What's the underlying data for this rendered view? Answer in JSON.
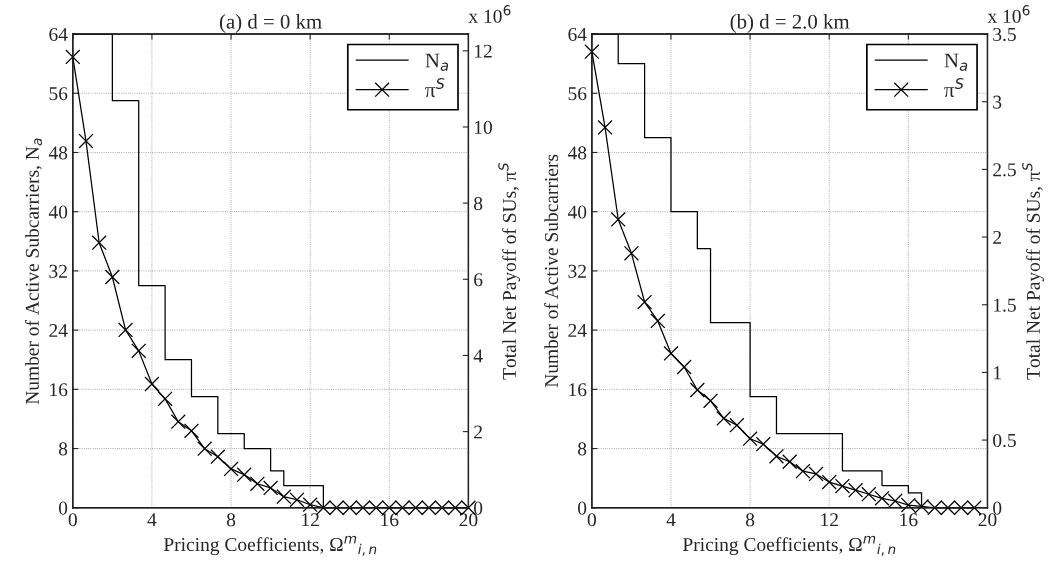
{
  "chart_data": [
    {
      "type": "line",
      "title": "(a) d = 0 km",
      "xlabel": "Pricing Coefficients, Ω$^{m}$$_{i,n}$",
      "ylabel": "Number of Active Subcarriers, N$_{a}$",
      "y2label": "Total Net Payoff of SUs, π$^{S}$",
      "xlim": [
        0,
        20
      ],
      "xticks": [
        0,
        4,
        8,
        12,
        16,
        20
      ],
      "ylim": [
        0,
        64
      ],
      "yticks": [
        0,
        8,
        16,
        24,
        32,
        40,
        48,
        56,
        64
      ],
      "y2lim": [
        0,
        12.44
      ],
      "y2ticks": [
        0,
        2,
        4,
        6,
        8,
        10,
        12
      ],
      "grid": true,
      "legend": "top right",
      "annotations": [
        "x 10$^{6}$"
      ],
      "series": [
        {
          "name": "N$_{a}$",
          "type": "step",
          "color": "#000000",
          "marker": "none",
          "x": [
            0,
            2,
            3.333,
            4.667,
            6,
            7.333,
            8.667,
            10,
            10.667,
            12.667,
            20
          ],
          "values": [
            64,
            55,
            30,
            20,
            15,
            10,
            8,
            5,
            3,
            0,
            0
          ]
        },
        {
          "name": "π$^{S}$",
          "axis": "y2",
          "color": "#000000",
          "marker": "cross",
          "x": [
            0,
            0.667,
            1.333,
            2,
            2.667,
            3.333,
            4,
            4.667,
            5.333,
            6,
            6.667,
            7.333,
            8,
            8.667,
            9.333,
            10,
            10.667,
            11.333,
            12,
            12.667,
            13.333,
            14,
            14.667,
            15.333,
            16,
            16.667,
            17.333,
            18,
            18.667,
            19.333,
            20
          ],
          "values": [
            11.84,
            9.63,
            6.96,
            6.06,
            4.67,
            4.12,
            3.25,
            2.86,
            2.26,
            2.02,
            1.55,
            1.34,
            1.02,
            0.87,
            0.63,
            0.52,
            0.29,
            0.21,
            0.08,
            0,
            0,
            0,
            0,
            0,
            0,
            0,
            0,
            0,
            0,
            0,
            0
          ]
        }
      ]
    },
    {
      "type": "line",
      "title": "(b) d = 2.0 km",
      "xlabel": "Pricing Coefficients, Ω$^{m}$$_{i,n}$",
      "ylabel": "Number of Active Subcarriers",
      "y2label": "Total Net Payoff of SUs, π$^{S}$",
      "xlim": [
        0,
        20
      ],
      "xticks": [
        0,
        4,
        8,
        12,
        16,
        20
      ],
      "ylim": [
        0,
        64
      ],
      "yticks": [
        0,
        8,
        16,
        24,
        32,
        40,
        48,
        56,
        64
      ],
      "y2lim": [
        0,
        3.5
      ],
      "y2ticks": [
        0,
        0.5,
        1,
        1.5,
        2,
        2.5,
        3,
        3.5
      ],
      "grid": true,
      "legend": "top right",
      "annotations": [
        "x 10$^{6}$"
      ],
      "series": [
        {
          "name": "N$_{a}$",
          "type": "step",
          "color": "#000000",
          "marker": "none",
          "x": [
            0,
            1.333,
            2.667,
            4,
            5.333,
            6,
            8,
            9.333,
            12.667,
            14.667,
            16,
            16.667,
            20
          ],
          "values": [
            64,
            60,
            50,
            40,
            35,
            25,
            15,
            10,
            5,
            3,
            2,
            0,
            0
          ]
        },
        {
          "name": "π$^{S}$",
          "axis": "y2",
          "color": "#000000",
          "marker": "cross",
          "x": [
            0,
            0.667,
            1.333,
            2,
            2.667,
            3.333,
            4,
            4.667,
            5.333,
            6,
            6.667,
            7.333,
            8,
            8.667,
            9.333,
            10,
            10.667,
            11.333,
            12,
            12.667,
            13.333,
            14,
            14.667,
            15.333,
            16,
            16.667,
            17.333,
            18,
            18.667,
            19.333
          ],
          "values": [
            3.37,
            2.81,
            2.13,
            1.88,
            1.52,
            1.38,
            1.14,
            1.04,
            0.87,
            0.79,
            0.66,
            0.61,
            0.51,
            0.47,
            0.38,
            0.34,
            0.27,
            0.25,
            0.19,
            0.16,
            0.13,
            0.1,
            0.07,
            0.05,
            0.02,
            0.01,
            0,
            0,
            0,
            0
          ]
        }
      ]
    }
  ]
}
